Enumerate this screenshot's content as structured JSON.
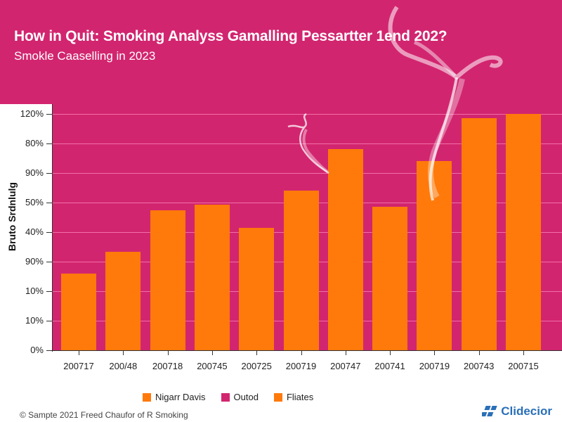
{
  "header": {
    "title": "How in Quit: Smoking Analyss Gamalling Pessartter 1end 202?",
    "subtitle": "Smokle Caaselling in 2023"
  },
  "colors": {
    "background_header": "#d2256f",
    "plot_background": "#d2256f",
    "bar": "#ff7a0a",
    "gridline": "#f06fa8",
    "brand": "#2a6fb8"
  },
  "chart_data": {
    "type": "bar",
    "title": "How in Quit: Smoking Analyss Gamalling Pessartter 1end 202?",
    "subtitle": "Smokle Caaselling in 2023",
    "xlabel": "",
    "ylabel": "Bruto Srdnlulg",
    "categories": [
      "200717",
      "200/48",
      "200718",
      "200745",
      "200725",
      "200719",
      "200747",
      "200741",
      "200719",
      "200743",
      "200715"
    ],
    "values": [
      39,
      50,
      71,
      74,
      62,
      81,
      102,
      73,
      96,
      118,
      120
    ],
    "ylim": [
      0,
      120
    ],
    "y_tick_labels": [
      "0%",
      "10%",
      "10%",
      "90%",
      "40%",
      "50%",
      "90%",
      "80%",
      "120%"
    ],
    "grid": true,
    "legend_position": "bottom",
    "legend": [
      {
        "label": "Nigarr Davis",
        "color": "#ff7a0a"
      },
      {
        "label": "Outod",
        "color": "#d2256f"
      },
      {
        "label": "Fliates",
        "color": "#ff7a0a"
      }
    ]
  },
  "yaxis": {
    "title": "Bruto Srdnlulg",
    "ticks": [
      "120%",
      "80%",
      "90%",
      "50%",
      "40%",
      "90%",
      "10%",
      "10%",
      "0%"
    ]
  },
  "legend": {
    "items": [
      {
        "label": "Nigarr Davis",
        "icon": "orange-square-swatch"
      },
      {
        "label": "Outod",
        "icon": "magenta-square-swatch"
      },
      {
        "label": "Fliates",
        "icon": "orange-square-swatch"
      }
    ]
  },
  "footer": {
    "copyright": "© Sampte 2021  Freed Chaufor of R Smoking",
    "brand": "Clidecior",
    "brand_icon": "brand-logo-icon"
  }
}
